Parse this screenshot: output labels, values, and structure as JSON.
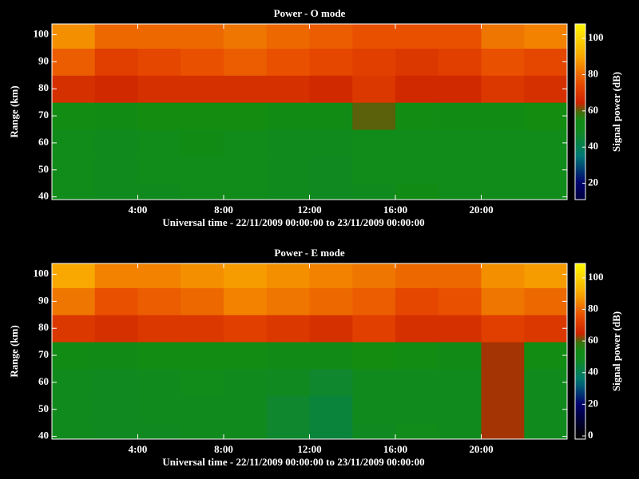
{
  "chart_data": [
    {
      "type": "heatmap",
      "title": "Power - O mode",
      "xlabel": "Universal time - 22/11/2009 00:00:00 to 23/11/2009 00:00:00",
      "ylabel": "Range (km)",
      "colorbar_label": "Signal power (dB)",
      "x_bins": [
        0,
        2,
        4,
        6,
        8,
        10,
        12,
        14,
        16,
        18,
        20,
        22,
        24
      ],
      "y_bins": [
        39,
        45,
        55,
        65,
        75,
        85,
        95,
        104
      ],
      "z": [
        [
          52,
          50,
          50,
          52,
          52,
          50,
          48,
          50,
          55,
          52,
          52,
          52
        ],
        [
          52,
          50,
          52,
          52,
          52,
          50,
          48,
          52,
          52,
          52,
          52,
          52
        ],
        [
          52,
          50,
          52,
          55,
          52,
          50,
          50,
          52,
          52,
          52,
          52,
          52
        ],
        [
          56,
          55,
          58,
          58,
          58,
          55,
          55,
          60,
          56,
          55,
          55,
          58
        ],
        [
          68,
          66,
          68,
          68,
          68,
          68,
          66,
          70,
          66,
          66,
          70,
          68
        ],
        [
          78,
          72,
          74,
          76,
          78,
          76,
          74,
          72,
          70,
          72,
          76,
          74
        ],
        [
          86,
          80,
          80,
          80,
          82,
          80,
          78,
          76,
          76,
          76,
          82,
          84
        ]
      ],
      "xlim": [
        0,
        24
      ],
      "xticks": [
        {
          "value": 4,
          "label": "4:00"
        },
        {
          "value": 8,
          "label": "8:00"
        },
        {
          "value": 12,
          "label": "12:00"
        },
        {
          "value": 16,
          "label": "16:00"
        },
        {
          "value": 20,
          "label": "20:00"
        }
      ],
      "ylim": [
        39,
        104
      ],
      "yticks": [
        40,
        50,
        60,
        70,
        80,
        90,
        100
      ],
      "clim": [
        11,
        108
      ],
      "cticks": [
        20,
        40,
        60,
        80,
        100
      ],
      "colorscale": [
        [
          0,
          "#000000"
        ],
        [
          20,
          "#00006e"
        ],
        [
          35,
          "#007878"
        ],
        [
          48,
          "#108a20"
        ],
        [
          58,
          "#138c10"
        ],
        [
          63,
          "#c81e00"
        ],
        [
          75,
          "#e84a00"
        ],
        [
          90,
          "#f8a800"
        ],
        [
          110,
          "#ffff00"
        ]
      ]
    },
    {
      "type": "heatmap",
      "title": "Power - E mode",
      "xlabel": "Universal time - 22/11/2009 00:00:00 to 23/11/2009 00:00:00",
      "ylabel": "Range (km)",
      "colorbar_label": "Signal power (dB)",
      "x_bins": [
        0,
        2,
        4,
        6,
        8,
        10,
        12,
        14,
        16,
        18,
        20,
        22,
        24
      ],
      "y_bins": [
        39,
        45,
        55,
        65,
        75,
        85,
        95,
        104
      ],
      "z": [
        [
          50,
          48,
          48,
          50,
          50,
          46,
          44,
          48,
          52,
          50,
          62,
          50
        ],
        [
          50,
          48,
          50,
          50,
          50,
          46,
          44,
          50,
          50,
          50,
          62,
          50
        ],
        [
          50,
          48,
          50,
          52,
          50,
          48,
          46,
          50,
          50,
          50,
          62,
          50
        ],
        [
          55,
          54,
          56,
          56,
          56,
          54,
          54,
          58,
          56,
          54,
          62,
          56
        ],
        [
          70,
          68,
          70,
          70,
          72,
          70,
          68,
          72,
          68,
          68,
          72,
          70
        ],
        [
          82,
          76,
          78,
          80,
          84,
          82,
          80,
          78,
          74,
          76,
          82,
          80
        ],
        [
          90,
          84,
          84,
          86,
          88,
          86,
          84,
          82,
          80,
          80,
          86,
          88
        ]
      ],
      "xlim": [
        0,
        24
      ],
      "xticks": [
        {
          "value": 4,
          "label": "4:00"
        },
        {
          "value": 8,
          "label": "8:00"
        },
        {
          "value": 12,
          "label": "12:00"
        },
        {
          "value": 16,
          "label": "16:00"
        },
        {
          "value": 20,
          "label": "20:00"
        }
      ],
      "ylim": [
        39,
        104
      ],
      "yticks": [
        40,
        50,
        60,
        70,
        80,
        90,
        100
      ],
      "clim": [
        -2,
        109
      ],
      "cticks": [
        0,
        20,
        40,
        60,
        80,
        100
      ],
      "colorscale": [
        [
          0,
          "#000000"
        ],
        [
          20,
          "#00006e"
        ],
        [
          35,
          "#007878"
        ],
        [
          48,
          "#108a20"
        ],
        [
          58,
          "#138c10"
        ],
        [
          63,
          "#c81e00"
        ],
        [
          75,
          "#e84a00"
        ],
        [
          90,
          "#f8a800"
        ],
        [
          110,
          "#ffff00"
        ]
      ]
    }
  ]
}
